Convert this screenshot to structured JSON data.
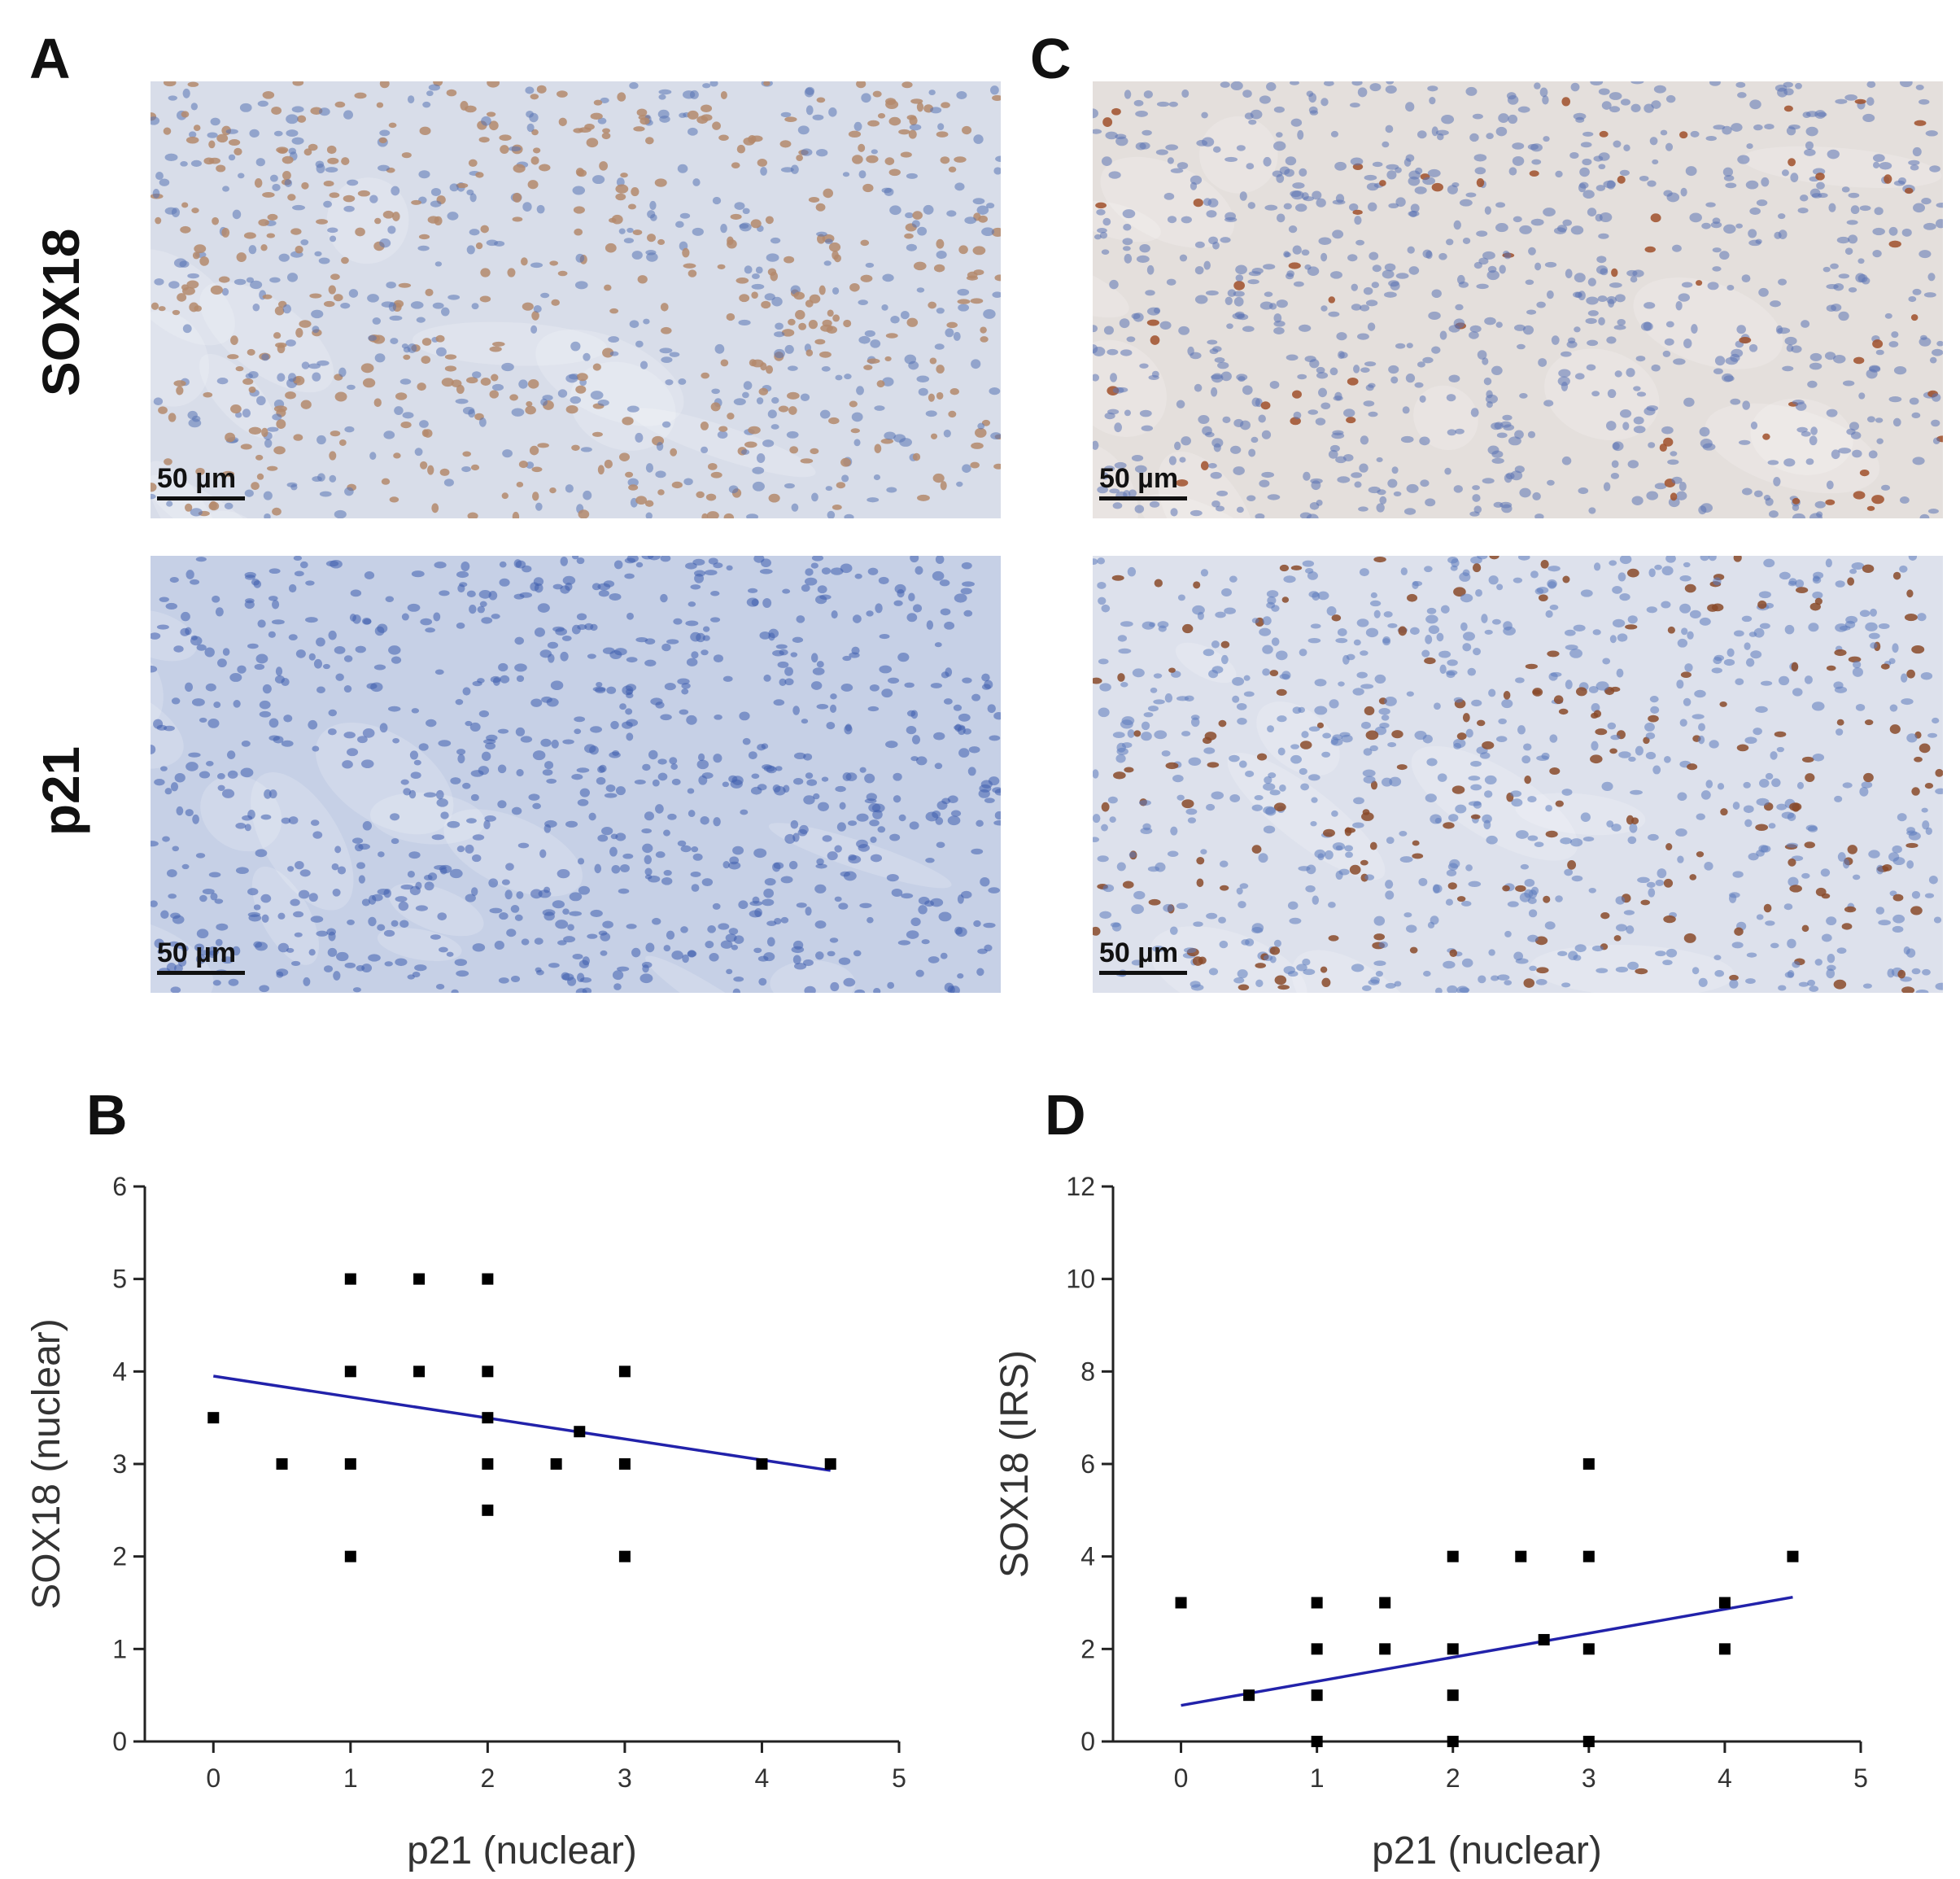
{
  "panels": {
    "A": "A",
    "B": "B",
    "C": "C",
    "D": "D"
  },
  "row_labels": {
    "top": "SOX18",
    "bottom": "p21"
  },
  "scale_bar": "50 µm",
  "micrographs": [
    {
      "id": "A-top",
      "stain": "SOX18",
      "background": "#d8dde9",
      "nuclei_color": "#b48a6c",
      "blue_color": "#5a74b4",
      "brown_fraction": 0.55
    },
    {
      "id": "A-bottom",
      "stain": "p21",
      "background": "#c6d0e6",
      "nuclei_color": "#a06040",
      "blue_color": "#3f5fae",
      "brown_fraction": 0.002
    },
    {
      "id": "C-top",
      "stain": "SOX18",
      "background": "#e4dfdc",
      "nuclei_color": "#a0502a",
      "blue_color": "#5c74b4",
      "brown_fraction": 0.06
    },
    {
      "id": "C-bottom",
      "stain": "p21",
      "background": "#dde1ec",
      "nuclei_color": "#8a4a2a",
      "blue_color": "#5d7cbd",
      "brown_fraction": 0.22
    }
  ],
  "chart_data": [
    {
      "type": "scatter",
      "panel": "B",
      "xlabel": "p21 (nuclear)",
      "ylabel": "SOX18 (nuclear)",
      "xlim": [
        -0.5,
        5
      ],
      "ylim": [
        0,
        6
      ],
      "xticks": [
        0,
        1,
        2,
        3,
        4,
        5
      ],
      "yticks": [
        0,
        1,
        2,
        3,
        4,
        5,
        6
      ],
      "points": [
        [
          0,
          3.5
        ],
        [
          0.5,
          3
        ],
        [
          1,
          5
        ],
        [
          1,
          4
        ],
        [
          1,
          3
        ],
        [
          1,
          2
        ],
        [
          1.5,
          5
        ],
        [
          1.5,
          4
        ],
        [
          2,
          5
        ],
        [
          2,
          4
        ],
        [
          2,
          3.5
        ],
        [
          2,
          3
        ],
        [
          2,
          2.5
        ],
        [
          2.5,
          3
        ],
        [
          2.67,
          3.35
        ],
        [
          3,
          4
        ],
        [
          3,
          3
        ],
        [
          3,
          2
        ],
        [
          4,
          3
        ],
        [
          4.5,
          3
        ]
      ],
      "trendline": {
        "x": [
          0,
          4.5
        ],
        "y": [
          3.95,
          2.93
        ]
      },
      "line_color": "#2222aa",
      "marker_color": "#000000"
    },
    {
      "type": "scatter",
      "panel": "D",
      "xlabel": "p21 (nuclear)",
      "ylabel": "SOX18 (IRS)",
      "xlim": [
        -0.5,
        5
      ],
      "ylim": [
        0,
        12
      ],
      "xticks": [
        0,
        1,
        2,
        3,
        4,
        5
      ],
      "yticks": [
        0,
        2,
        4,
        6,
        8,
        10,
        12
      ],
      "points": [
        [
          0,
          3
        ],
        [
          0.5,
          1
        ],
        [
          1,
          3
        ],
        [
          1,
          2
        ],
        [
          1,
          1
        ],
        [
          1,
          0
        ],
        [
          1.5,
          3
        ],
        [
          1.5,
          2
        ],
        [
          2,
          4
        ],
        [
          2,
          2
        ],
        [
          2,
          1
        ],
        [
          2,
          0
        ],
        [
          2.5,
          4
        ],
        [
          2.67,
          2.2
        ],
        [
          3,
          6
        ],
        [
          3,
          4
        ],
        [
          3,
          2
        ],
        [
          3,
          0
        ],
        [
          4,
          3
        ],
        [
          4,
          2
        ],
        [
          4.5,
          4
        ]
      ],
      "trendline": {
        "x": [
          0,
          4.5
        ],
        "y": [
          0.78,
          3.12
        ]
      },
      "line_color": "#2222aa",
      "marker_color": "#000000"
    }
  ]
}
